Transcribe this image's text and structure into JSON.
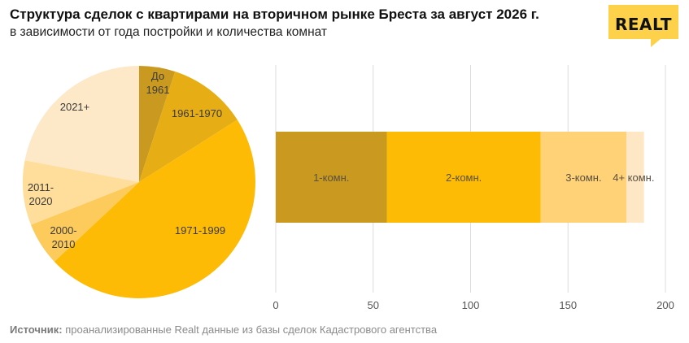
{
  "header": {
    "title": "Структура сделок с квартирами на вторичном рынке Бреста за август 2026 г.",
    "subtitle": "в зависимости от года постройки и количества комнат"
  },
  "logo": {
    "text": "REALT",
    "bg_color": "#fdd24a"
  },
  "footer": {
    "source_label": "Источник:",
    "source_text": " проанализированные Realt данные из базы сделок Кадастрового агентства"
  },
  "chart_data": [
    {
      "type": "pie",
      "title": "",
      "start_angle_deg": 0,
      "direction": "clockwise",
      "slices": [
        {
          "label": "До\n1961",
          "value": 5,
          "color": "#c99a1f"
        },
        {
          "label": "1961-1970",
          "value": 11,
          "color": "#e6ad14"
        },
        {
          "label": "1971-1999",
          "value": 47,
          "color": "#fdbb06"
        },
        {
          "label": "2000-\n2010",
          "value": 6,
          "color": "#fdcb5c"
        },
        {
          "label": "2011-\n2020",
          "value": 9,
          "color": "#ffdd9a"
        },
        {
          "label": "2021+",
          "value": 22,
          "color": "#fde8c8"
        }
      ]
    },
    {
      "type": "bar",
      "orientation": "horizontal",
      "stacked": true,
      "title": "",
      "xlabel": "",
      "ylabel": "",
      "xlim": [
        0,
        200
      ],
      "xticks": [
        0,
        50,
        100,
        150,
        200
      ],
      "grid": true,
      "series": [
        {
          "label": "1-комн.",
          "value": 57,
          "color": "#c99a1f"
        },
        {
          "label": "2-комн.",
          "value": 79,
          "color": "#fdbb06"
        },
        {
          "label": "3-комн.",
          "value": 44,
          "color": "#ffd277"
        },
        {
          "label": "4+ комн.",
          "value": 9,
          "color": "#fde7c4"
        }
      ]
    }
  ]
}
